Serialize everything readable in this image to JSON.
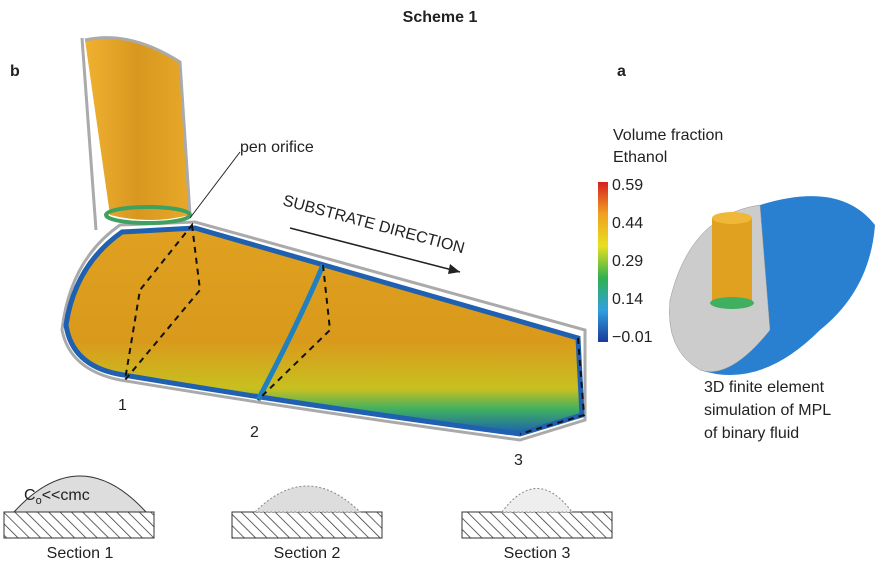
{
  "title": "Scheme 1",
  "panel_b": {
    "label": "b",
    "pen_label": "pen orifice",
    "direction_label": "SUBSTRATE DIRECTION",
    "section_marks": [
      "1",
      "2",
      "3"
    ]
  },
  "panel_a": {
    "label": "a",
    "colorbar_title": [
      "Volume fraction",
      "Ethanol"
    ],
    "colorbar_ticks": [
      "0.59",
      "0.44",
      "0.29",
      "0.14",
      "−0.01"
    ],
    "caption": [
      "3D finite element",
      "simulation of MPL",
      "of binary fluid"
    ]
  },
  "sections": {
    "concentration": [
      "C",
      "o",
      "<<cmc"
    ],
    "labels": [
      "Section 1",
      "Section 2",
      "Section 3"
    ]
  }
}
